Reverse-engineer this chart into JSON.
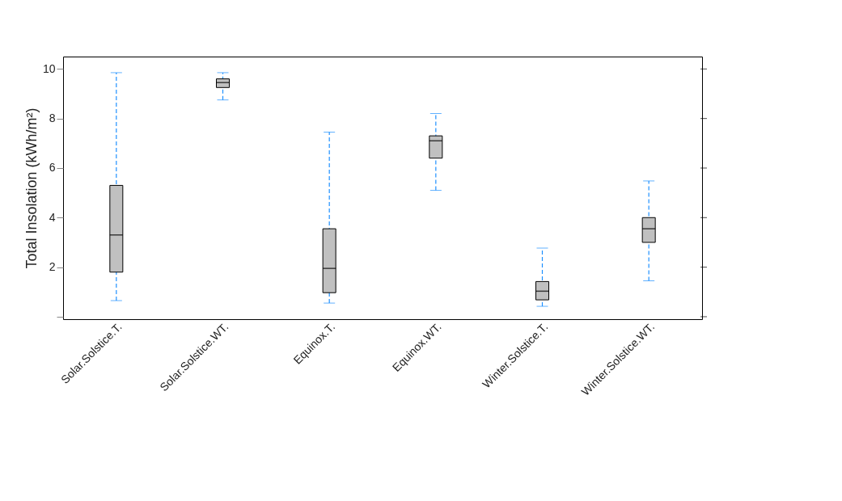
{
  "chart_data": {
    "type": "box",
    "ylabel": "Total Insolation (kWh/m²)",
    "categories": [
      "Solar.Solstice.T.",
      "Solar.Solstice.WT.",
      "Equinox.T.",
      "Equinox.WT.",
      "Winter.Solstice.T.",
      "Winter.Solstice.WT."
    ],
    "series": [
      {
        "color": "#c0c0c0",
        "boxes": [
          {
            "low": 0.65,
            "q1": 1.8,
            "median": 3.3,
            "q3": 5.3,
            "high": 9.85
          },
          {
            "low": 8.75,
            "q1": 9.25,
            "median": 9.45,
            "q3": 9.6,
            "high": 9.85
          },
          {
            "low": 0.55,
            "q1": 0.97,
            "median": 1.95,
            "q3": 3.55,
            "high": 7.45
          },
          {
            "low": 5.1,
            "q1": 6.4,
            "median": 7.1,
            "q3": 7.3,
            "high": 8.2
          },
          {
            "low": 0.42,
            "q1": 0.68,
            "median": 1.03,
            "q3": 1.42,
            "high": 2.77
          },
          {
            "low": 1.45,
            "q1": 3.0,
            "median": 3.55,
            "q3": 4.0,
            "high": 5.48
          }
        ]
      }
    ],
    "ylim": [
      -0.1,
      10.5
    ],
    "yticks": [
      {
        "value": 0,
        "label": null
      },
      2,
      4,
      6,
      8,
      10
    ],
    "grid": false,
    "line_style": "dashed"
  }
}
